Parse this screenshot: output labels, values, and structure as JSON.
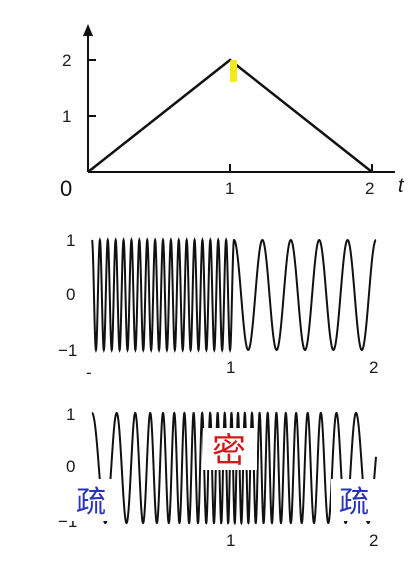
{
  "figure": {
    "top_plot": {
      "origin_label": "0",
      "y_ticks": [
        "1",
        "2"
      ],
      "x_ticks": [
        "1",
        "2"
      ],
      "x_axis_letter": "t",
      "polyline_points": [
        {
          "x": 0,
          "y": 0
        },
        {
          "x": 1,
          "y": 2
        },
        {
          "x": 2,
          "y": 0
        }
      ],
      "peak_marker_color": "#f2ea1b"
    },
    "middle_plot": {
      "y_ticks": [
        "1",
        "0",
        "−1"
      ],
      "x_ticks": [
        "1",
        "2"
      ],
      "x_start_mark": "-",
      "segments": [
        {
          "from": 0,
          "to": 1,
          "cycles": 18
        },
        {
          "from": 1,
          "to": 2,
          "cycles": 5
        }
      ]
    },
    "bottom_plot": {
      "y_ticks": [
        "1",
        "0",
        "−1"
      ],
      "x_ticks": [
        "1",
        "2"
      ],
      "chirp_note": "frequency rises from the edges toward the middle",
      "edge_cycles_per_unit": 5,
      "center_cycles_per_unit": 22,
      "labels": {
        "dense": "密",
        "sparse_left": "疏",
        "sparse_right": "疏"
      },
      "colors": {
        "dense": "#d01818",
        "sparse": "#2733b8"
      }
    }
  }
}
